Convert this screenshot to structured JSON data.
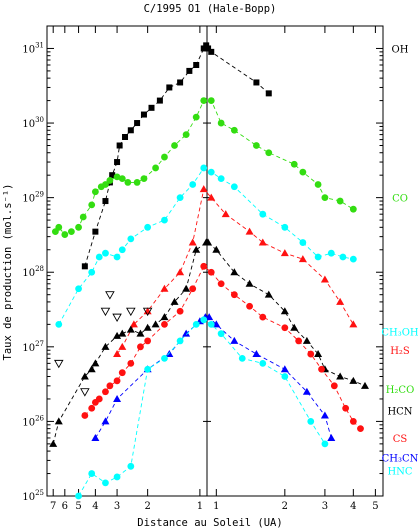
{
  "chart_data": {
    "type": "scatter",
    "title": "C/1995 O1 (Hale-Bopp)",
    "xlabel": "Distance au Soleil (UA)",
    "ylabel": "Taux de production (mol.s⁻¹)",
    "y_log": true,
    "ylim": [
      1e+25,
      2e+31
    ],
    "y_ticks": [
      {
        "value": 1e+25,
        "label": "10^25"
      },
      {
        "value": 1e+26,
        "label": "10^26"
      },
      {
        "value": 1e+27,
        "label": "10^27"
      },
      {
        "value": 1e+28,
        "label": "10^28"
      },
      {
        "value": 1e+29,
        "label": "10^29"
      },
      {
        "value": 1e+30,
        "label": "10^30"
      },
      {
        "value": 1e+31,
        "label": "10^31"
      }
    ],
    "x_axis_note": "log-scale heliocentric distance; pre-perihelion (left, decreasing) and post-perihelion (right, increasing), perihelion at 0.91 UA",
    "x_ticks_left": [
      "7",
      "6",
      "5",
      "4",
      "3",
      "2",
      "1"
    ],
    "x_ticks_right": [
      "1",
      "2",
      "3",
      "4",
      "5"
    ],
    "perihelion_au": 0.91,
    "series": [
      {
        "name": "OH",
        "color": "#000000",
        "marker": "square",
        "label_y": 1e+31,
        "pre": [
          [
            4.6,
            1.2e+28
          ],
          [
            4.0,
            3.5e+28
          ],
          [
            3.5,
            9e+28
          ],
          [
            3.3,
            1.6e+29
          ],
          [
            3.2,
            2e+29
          ],
          [
            3.0,
            3e+29
          ],
          [
            2.9,
            5e+29
          ],
          [
            2.7,
            6.5e+29
          ],
          [
            2.5,
            8e+29
          ],
          [
            2.3,
            1e+30
          ],
          [
            2.1,
            1.3e+30
          ],
          [
            1.9,
            1.6e+30
          ],
          [
            1.7,
            2e+30
          ],
          [
            1.5,
            3e+30
          ],
          [
            1.3,
            3.5e+30
          ],
          [
            1.15,
            5e+30
          ],
          [
            1.05,
            6e+30
          ],
          [
            0.95,
            1e+31
          ],
          [
            0.92,
            1.1e+31
          ]
        ],
        "post": [
          [
            0.92,
            1e+31
          ],
          [
            0.95,
            9e+30
          ],
          [
            1.5,
            3.5e+30
          ],
          [
            1.7,
            2.5e+30
          ]
        ]
      },
      {
        "name": "CO",
        "color": "#33dd11",
        "marker": "circle",
        "label_y": 1e+29,
        "pre": [
          [
            6.8,
            3.5e+28
          ],
          [
            6.5,
            4e+28
          ],
          [
            6.0,
            3.2e+28
          ],
          [
            5.5,
            3.5e+28
          ],
          [
            5.0,
            4e+28
          ],
          [
            4.7,
            5.5e+28
          ],
          [
            4.2,
            8e+28
          ],
          [
            4.0,
            1.2e+29
          ],
          [
            3.7,
            1.4e+29
          ],
          [
            3.5,
            1.5e+29
          ],
          [
            3.3,
            1.7e+29
          ],
          [
            3.0,
            1.9e+29
          ],
          [
            2.8,
            1.8e+29
          ],
          [
            2.6,
            1.6e+29
          ],
          [
            2.3,
            1.6e+29
          ],
          [
            2.1,
            1.8e+29
          ],
          [
            1.8,
            2.5e+29
          ],
          [
            1.6,
            3.5e+29
          ],
          [
            1.4,
            5e+29
          ],
          [
            1.2,
            7e+29
          ],
          [
            1.05,
            1.2e+30
          ],
          [
            0.95,
            2e+30
          ]
        ],
        "post": [
          [
            0.95,
            2e+30
          ],
          [
            1.05,
            1e+30
          ],
          [
            1.2,
            8e+29
          ],
          [
            1.5,
            5e+29
          ],
          [
            1.7,
            4e+29
          ],
          [
            2.2,
            2.8e+29
          ],
          [
            2.4,
            2.2e+29
          ],
          [
            2.8,
            1.5e+29
          ],
          [
            3.0,
            1e+29
          ],
          [
            3.5,
            9e+28
          ],
          [
            4.0,
            7e+28
          ]
        ]
      },
      {
        "name": "CH3OH",
        "label": "CH₃OH",
        "color": "#00ffff",
        "marker": "circle",
        "label_y": 1.6e+27,
        "pre": [
          [
            6.5,
            2e+27
          ],
          [
            5.0,
            6e+27
          ],
          [
            4.2,
            1e+28
          ],
          [
            3.8,
            1.6e+28
          ],
          [
            3.5,
            1.8e+28
          ],
          [
            3.0,
            1.6e+28
          ],
          [
            2.8,
            2e+28
          ],
          [
            2.5,
            2.8e+28
          ],
          [
            2.0,
            4e+28
          ],
          [
            1.6,
            5e+28
          ],
          [
            1.3,
            1e+29
          ],
          [
            1.1,
            1.5e+29
          ],
          [
            0.95,
            2.5e+29
          ]
        ],
        "post": [
          [
            0.95,
            2.2e+29
          ],
          [
            1.05,
            1.8e+29
          ],
          [
            1.2,
            1.4e+29
          ],
          [
            1.6,
            6e+28
          ],
          [
            2.0,
            4e+28
          ],
          [
            2.4,
            2.5e+28
          ],
          [
            2.8,
            1.6e+28
          ],
          [
            3.2,
            1.8e+28
          ],
          [
            3.6,
            1.6e+28
          ],
          [
            4.0,
            1.5e+28
          ]
        ]
      },
      {
        "name": "H2S",
        "label": "H₂S",
        "color": "#ff1111",
        "marker": "triangle",
        "label_y": 9e+26,
        "pre": [
          [
            3.0,
            8e+26
          ],
          [
            2.8,
            1e+27
          ],
          [
            2.4,
            2e+27
          ],
          [
            2.0,
            3e+27
          ],
          [
            1.6,
            6e+27
          ],
          [
            1.3,
            1e+28
          ],
          [
            1.1,
            2.5e+28
          ],
          [
            0.95,
            1.3e+29
          ]
        ],
        "post": [
          [
            0.95,
            1e+29
          ],
          [
            1.1,
            6e+28
          ],
          [
            1.4,
            3.5e+28
          ],
          [
            1.6,
            2.5e+28
          ],
          [
            2.0,
            1.8e+28
          ],
          [
            2.4,
            1.5e+28
          ],
          [
            3.0,
            8e+27
          ],
          [
            3.5,
            4e+27
          ],
          [
            4.0,
            2e+27
          ]
        ]
      },
      {
        "name": "H2CO",
        "label": "H₂CO",
        "color": "#33dd11",
        "marker": "triangle-open",
        "label_y": 2.7e+26,
        "pre": [
          [
            6.5,
            6e+26
          ],
          [
            4.6,
            2.5e+26
          ],
          [
            3.5,
            3e+27
          ],
          [
            3.3,
            5e+27
          ],
          [
            3.0,
            2.5e+27
          ],
          [
            2.5,
            3e+27
          ],
          [
            2.0,
            3e+27
          ]
        ],
        "post": []
      },
      {
        "name": "HCN",
        "color": "#000000",
        "marker": "triangle",
        "label_y": 1.4e+26,
        "pre": [
          [
            7.0,
            5e+25
          ],
          [
            6.5,
            1e+26
          ],
          [
            4.6,
            4e+26
          ],
          [
            4.2,
            5e+26
          ],
          [
            4.0,
            6e+26
          ],
          [
            3.5,
            1e+27
          ],
          [
            3.0,
            1.4e+27
          ],
          [
            2.8,
            1.5e+27
          ],
          [
            2.5,
            1.7e+27
          ],
          [
            2.2,
            1.5e+27
          ],
          [
            2.0,
            1.8e+27
          ],
          [
            1.8,
            2e+27
          ],
          [
            1.6,
            2.5e+27
          ],
          [
            1.4,
            4e+27
          ],
          [
            1.2,
            6e+27
          ],
          [
            1.05,
            2e+28
          ],
          [
            0.92,
            2.5e+28
          ]
        ],
        "post": [
          [
            0.92,
            2.5e+28
          ],
          [
            1.0,
            2e+28
          ],
          [
            1.2,
            1e+28
          ],
          [
            1.4,
            7e+27
          ],
          [
            1.7,
            5e+27
          ],
          [
            2.0,
            3e+27
          ],
          [
            2.2,
            1.8e+27
          ],
          [
            2.5,
            1.2e+27
          ],
          [
            2.8,
            8e+26
          ],
          [
            3.0,
            5e+26
          ],
          [
            3.5,
            4e+26
          ],
          [
            4.0,
            3.5e+26
          ],
          [
            4.5,
            3e+26
          ]
        ]
      },
      {
        "name": "CS",
        "color": "#ff1111",
        "marker": "circle",
        "label_y": 6e+25,
        "pre": [
          [
            4.6,
            1.2e+26
          ],
          [
            4.2,
            1.5e+26
          ],
          [
            4.0,
            1.8e+26
          ],
          [
            3.8,
            2e+26
          ],
          [
            3.5,
            2.5e+26
          ],
          [
            3.3,
            3e+26
          ],
          [
            3.0,
            3.5e+26
          ],
          [
            2.8,
            4.5e+26
          ],
          [
            2.5,
            6e+26
          ],
          [
            2.2,
            1e+27
          ],
          [
            2.0,
            1.2e+27
          ],
          [
            1.6,
            2e+27
          ],
          [
            1.3,
            3e+27
          ],
          [
            1.1,
            6e+27
          ],
          [
            0.95,
            1.2e+28
          ]
        ],
        "post": [
          [
            0.95,
            1e+28
          ],
          [
            1.05,
            7e+27
          ],
          [
            1.2,
            5e+27
          ],
          [
            1.4,
            3.5e+27
          ],
          [
            1.6,
            2.5e+27
          ],
          [
            2.0,
            1.8e+27
          ],
          [
            2.3,
            1.2e+27
          ],
          [
            2.6,
            8e+26
          ],
          [
            2.9,
            5e+26
          ],
          [
            3.3,
            3e+26
          ],
          [
            3.7,
            1.5e+26
          ],
          [
            4.0,
            1e+26
          ],
          [
            4.3,
            8e+25
          ]
        ]
      },
      {
        "name": "CH3CN",
        "label": "CH₃CN",
        "color": "#0000ff",
        "marker": "triangle",
        "label_y": 3.3e+25,
        "pre": [
          [
            4.0,
            6e+25
          ],
          [
            3.5,
            1e+26
          ],
          [
            3.0,
            2e+26
          ],
          [
            2.0,
            5e+26
          ],
          [
            1.5,
            8e+26
          ],
          [
            1.2,
            1.5e+27
          ],
          [
            1.0,
            2.2e+27
          ],
          [
            0.93,
            2.5e+27
          ]
        ],
        "post": [
          [
            0.93,
            2.5e+27
          ],
          [
            1.0,
            2e+27
          ],
          [
            1.2,
            1.2e+27
          ],
          [
            1.5,
            8e+26
          ],
          [
            2.0,
            5e+26
          ],
          [
            2.5,
            2.5e+26
          ],
          [
            3.0,
            1.2e+26
          ],
          [
            3.2,
            6e+25
          ]
        ]
      },
      {
        "name": "HNC",
        "color": "#00ffff",
        "marker": "circle",
        "label_y": 2.2e+25,
        "pre": [
          [
            5.0,
            1e+25
          ],
          [
            4.2,
            2e+25
          ],
          [
            3.5,
            1.5e+25
          ],
          [
            3.0,
            1.8e+25
          ],
          [
            2.5,
            2.5e+25
          ],
          [
            2.0,
            5e+26
          ],
          [
            1.6,
            7e+26
          ],
          [
            1.3,
            1.2e+27
          ],
          [
            1.05,
            2e+27
          ],
          [
            0.95,
            2.3e+27
          ]
        ],
        "post": [
          [
            0.95,
            2e+27
          ],
          [
            1.05,
            1.5e+27
          ],
          [
            1.3,
            7e+26
          ],
          [
            1.6,
            6e+26
          ],
          [
            2.0,
            4e+26
          ],
          [
            2.6,
            1e+26
          ],
          [
            3.0,
            5e+25
          ]
        ]
      }
    ]
  }
}
